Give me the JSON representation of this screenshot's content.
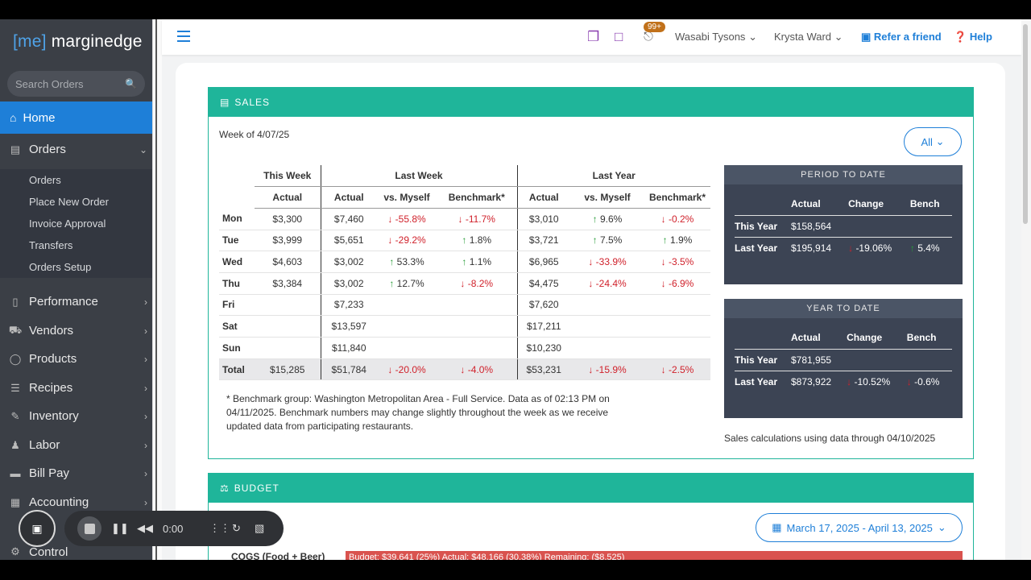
{
  "sidebar": {
    "logo_bracket": "[me]",
    "logo_name": "marginedge",
    "search_placeholder": "Search Orders",
    "home": "Home",
    "orders": "Orders",
    "orders_sub": [
      "Orders",
      "Place New Order",
      "Invoice Approval",
      "Transfers",
      "Orders Setup"
    ],
    "items": [
      "Performance",
      "Vendors",
      "Products",
      "Recipes",
      "Inventory",
      "Labor",
      "Bill Pay",
      "Accounting",
      "Control"
    ]
  },
  "topbar": {
    "notifications": "99+",
    "restaurant": "Wasabi Tysons",
    "user": "Krysta Ward",
    "refer": "Refer a friend",
    "help": "Help"
  },
  "sales": {
    "title": "SALES",
    "week": "Week of 4/07/25",
    "filter": "All",
    "groups": {
      "this_week": "This Week",
      "last_week": "Last Week",
      "last_year": "Last Year"
    },
    "headers": [
      "Actual",
      "Actual",
      "vs. Myself",
      "Benchmark*",
      "Actual",
      "vs. Myself",
      "Benchmark*"
    ],
    "rows": [
      {
        "day": "Mon",
        "tw": "$3,300",
        "lw": "$7,460",
        "lw_vs": "-55.8%",
        "lw_vs_dir": "down",
        "lw_bm": "-11.7%",
        "lw_bm_dir": "down",
        "ly": "$3,010",
        "ly_vs": "9.6%",
        "ly_vs_dir": "up",
        "ly_bm": "-0.2%",
        "ly_bm_dir": "down"
      },
      {
        "day": "Tue",
        "tw": "$3,999",
        "lw": "$5,651",
        "lw_vs": "-29.2%",
        "lw_vs_dir": "down",
        "lw_bm": "1.8%",
        "lw_bm_dir": "up",
        "ly": "$3,721",
        "ly_vs": "7.5%",
        "ly_vs_dir": "up",
        "ly_bm": "1.9%",
        "ly_bm_dir": "up"
      },
      {
        "day": "Wed",
        "tw": "$4,603",
        "lw": "$3,002",
        "lw_vs": "53.3%",
        "lw_vs_dir": "up",
        "lw_bm": "1.1%",
        "lw_bm_dir": "up",
        "ly": "$6,965",
        "ly_vs": "-33.9%",
        "ly_vs_dir": "down",
        "ly_bm": "-3.5%",
        "ly_bm_dir": "down"
      },
      {
        "day": "Thu",
        "tw": "$3,384",
        "lw": "$3,002",
        "lw_vs": "12.7%",
        "lw_vs_dir": "up",
        "lw_bm": "-8.2%",
        "lw_bm_dir": "down",
        "ly": "$4,475",
        "ly_vs": "-24.4%",
        "ly_vs_dir": "down",
        "ly_bm": "-6.9%",
        "ly_bm_dir": "down"
      },
      {
        "day": "Fri",
        "tw": "",
        "lw": "$7,233",
        "lw_vs": "",
        "lw_vs_dir": "",
        "lw_bm": "",
        "lw_bm_dir": "",
        "ly": "$7,620",
        "ly_vs": "",
        "ly_vs_dir": "",
        "ly_bm": "",
        "ly_bm_dir": ""
      },
      {
        "day": "Sat",
        "tw": "",
        "lw": "$13,597",
        "lw_vs": "",
        "lw_vs_dir": "",
        "lw_bm": "",
        "lw_bm_dir": "",
        "ly": "$17,211",
        "ly_vs": "",
        "ly_vs_dir": "",
        "ly_bm": "",
        "ly_bm_dir": ""
      },
      {
        "day": "Sun",
        "tw": "",
        "lw": "$11,840",
        "lw_vs": "",
        "lw_vs_dir": "",
        "lw_bm": "",
        "lw_bm_dir": "",
        "ly": "$10,230",
        "ly_vs": "",
        "ly_vs_dir": "",
        "ly_bm": "",
        "ly_bm_dir": ""
      },
      {
        "day": "Total",
        "tw": "$15,285",
        "lw": "$51,784",
        "lw_vs": "-20.0%",
        "lw_vs_dir": "down",
        "lw_bm": "-4.0%",
        "lw_bm_dir": "down",
        "ly": "$53,231",
        "ly_vs": "-15.9%",
        "ly_vs_dir": "down",
        "ly_bm": "-2.5%",
        "ly_bm_dir": "down"
      }
    ],
    "note": "* Benchmark group: Washington Metropolitan Area - Full Service. Data as of 02:13 PM on 04/11/2025. Benchmark numbers may change slightly throughout the week as we receive updated data from participating restaurants.",
    "period_to_date": {
      "title": "PERIOD TO DATE",
      "headers": [
        "Actual",
        "Change",
        "Bench"
      ],
      "this_year_label": "This Year",
      "this_year": "$158,564",
      "last_year_label": "Last Year",
      "last_year": "$195,914",
      "change": "-19.06%",
      "change_dir": "down",
      "bench": "5.4%",
      "bench_dir": "up"
    },
    "year_to_date": {
      "title": "YEAR TO DATE",
      "headers": [
        "Actual",
        "Change",
        "Bench"
      ],
      "this_year_label": "This Year",
      "this_year": "$781,955",
      "last_year_label": "Last Year",
      "last_year": "$873,922",
      "change": "-10.52%",
      "change_dir": "down",
      "bench": "-0.6%",
      "bench_dir": "down"
    },
    "calc_note": "Sales calculations using data through 04/10/2025"
  },
  "budget": {
    "title": "BUDGET",
    "date_range": "March 17, 2025 - April 13, 2025",
    "cogs_label": "COGS (Food + Beer)",
    "cogs_bar": "Budget: $39,641 (25%)  Actual: $48,166 (30.38%)  Remaining: ($8,525)"
  },
  "recorder": {
    "time": "0:00"
  },
  "colors": {
    "accent": "#1e7fd8",
    "teal": "#1fb59a",
    "down": "#d0212b",
    "up": "#2a9d3a"
  }
}
